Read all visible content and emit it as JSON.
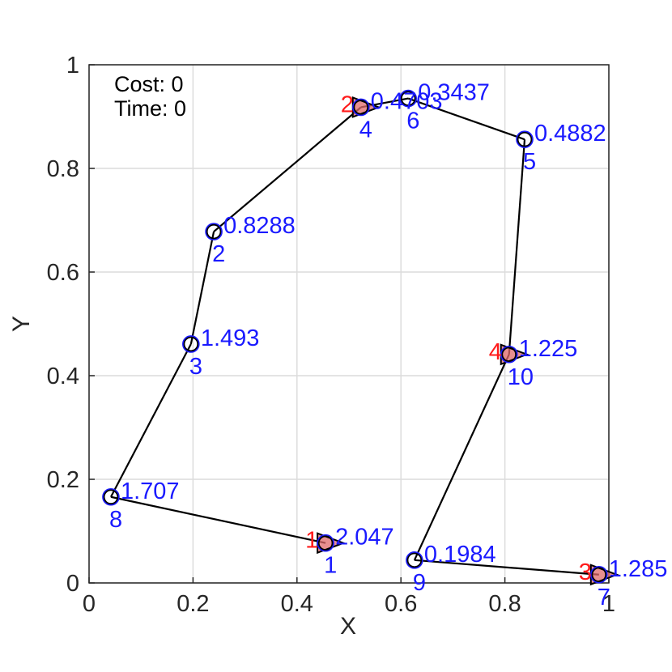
{
  "chart_data": {
    "type": "scatter",
    "xlabel": "X",
    "ylabel": "Y",
    "xlim": [
      0,
      1
    ],
    "ylim": [
      0,
      1
    ],
    "grid": true,
    "x_ticks": [
      "0",
      "0.2",
      "0.4",
      "0.6",
      "0.8",
      "1"
    ],
    "y_ticks": [
      "0",
      "0.2",
      "0.4",
      "0.6",
      "0.8",
      "1"
    ],
    "annotations": {
      "cost": "Cost: 0",
      "time": "Time: 0"
    },
    "nodes": [
      {
        "id": "1",
        "x": 0.455,
        "y": 0.077,
        "value": "2.047"
      },
      {
        "id": "2",
        "x": 0.24,
        "y": 0.678,
        "value": "0.8288"
      },
      {
        "id": "3",
        "x": 0.196,
        "y": 0.461,
        "value": "1.493"
      },
      {
        "id": "4",
        "x": 0.523,
        "y": 0.918,
        "value": "0.4703"
      },
      {
        "id": "5",
        "x": 0.838,
        "y": 0.856,
        "value": "0.4882"
      },
      {
        "id": "6",
        "x": 0.614,
        "y": 0.935,
        "value": "0.3437"
      },
      {
        "id": "7",
        "x": 0.981,
        "y": 0.016,
        "value": "1.285"
      },
      {
        "id": "8",
        "x": 0.042,
        "y": 0.166,
        "value": "1.707"
      },
      {
        "id": "9",
        "x": 0.626,
        "y": 0.044,
        "value": "0.1984"
      },
      {
        "id": "10",
        "x": 0.808,
        "y": 0.441,
        "value": "1.225"
      }
    ],
    "depots": [
      {
        "label": "1",
        "node": "1"
      },
      {
        "label": "2",
        "node": "4"
      },
      {
        "label": "3",
        "node": "7"
      },
      {
        "label": "4",
        "node": "10"
      }
    ],
    "route": [
      "1",
      "8",
      "3",
      "2",
      "4",
      "6",
      "5",
      "10",
      "9",
      "7"
    ],
    "colors": {
      "node_label": "#1a1aff",
      "depot_label": "#ff1a1a",
      "depot_fill": "#e06a6a",
      "route": "#000000",
      "grid": "#dcdcdc",
      "axis": "#262626"
    }
  }
}
